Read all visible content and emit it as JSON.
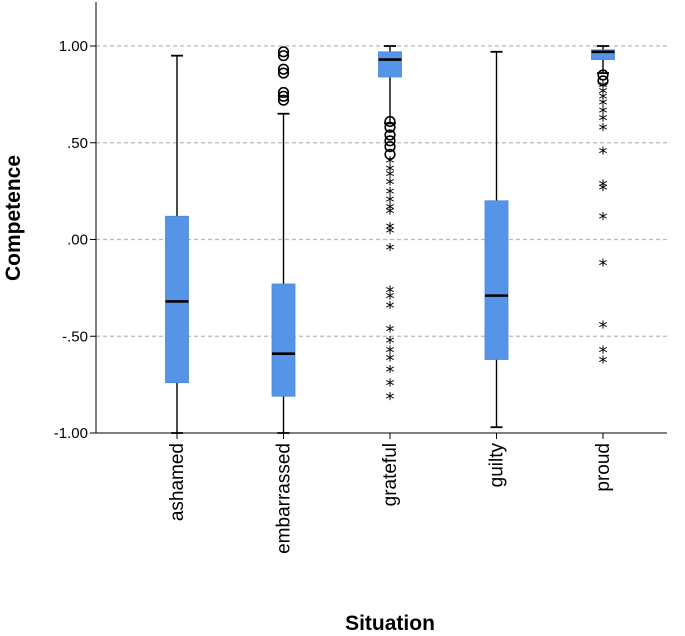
{
  "chart_data": {
    "type": "boxplot",
    "xlabel": "Situation",
    "ylabel": "Competence",
    "ylim": [
      -1.0,
      1.0
    ],
    "yticks": [
      {
        "value": -1.0,
        "label": "-1.00"
      },
      {
        "value": -0.5,
        "label": "-.50"
      },
      {
        "value": 0.0,
        "label": ".00"
      },
      {
        "value": 0.5,
        "label": ".50"
      },
      {
        "value": 1.0,
        "label": "1.00"
      }
    ],
    "grid": "horizontal-dashed",
    "box_color": "#5594e6",
    "series": [
      {
        "category": "ashamed",
        "whisker_low": -1.0,
        "q1": -0.74,
        "median": -0.32,
        "q3": 0.12,
        "whisker_high": 0.95,
        "outliers": [],
        "extremes": []
      },
      {
        "category": "embarrassed",
        "whisker_low": -1.0,
        "q1": -0.81,
        "median": -0.59,
        "q3": -0.23,
        "whisker_high": 0.65,
        "outliers": [
          0.72,
          0.74,
          0.76,
          0.86,
          0.88,
          0.95,
          0.97
        ],
        "extremes": []
      },
      {
        "category": "grateful",
        "whisker_low": 0.6,
        "q1": 0.84,
        "median": 0.93,
        "q3": 0.97,
        "whisker_high": 1.0,
        "outliers": [
          0.44,
          0.48,
          0.51,
          0.54,
          0.58,
          0.61
        ],
        "extremes": [
          0.4,
          0.36,
          0.33,
          0.29,
          0.24,
          0.2,
          0.16,
          0.14,
          0.06,
          0.04,
          -0.05,
          -0.27,
          -0.3,
          -0.35,
          -0.47,
          -0.53,
          -0.58,
          -0.62,
          -0.68,
          -0.75,
          -0.82
        ]
      },
      {
        "category": "guilty",
        "whisker_low": -0.97,
        "q1": -0.62,
        "median": -0.29,
        "q3": 0.2,
        "whisker_high": 0.97,
        "outliers": [],
        "extremes": []
      },
      {
        "category": "proud",
        "whisker_low": 0.86,
        "q1": 0.93,
        "median": 0.97,
        "q3": 0.98,
        "whisker_high": 1.0,
        "outliers": [
          0.85,
          0.82
        ],
        "extremes": [
          0.79,
          0.76,
          0.73,
          0.7,
          0.66,
          0.62,
          0.57,
          0.45,
          0.28,
          0.26,
          0.11,
          -0.13,
          -0.45,
          -0.58,
          -0.63
        ]
      }
    ]
  }
}
